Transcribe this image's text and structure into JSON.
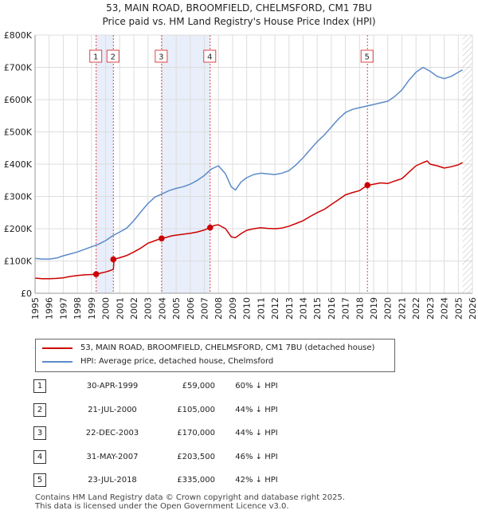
{
  "chart_data": {
    "type": "line",
    "title": "53, MAIN ROAD, BROOMFIELD, CHELMSFORD, CM1 7BU",
    "subtitle": "Price paid vs. HM Land Registry's House Price Index (HPI)",
    "xlim": [
      1995,
      2026
    ],
    "ylim": [
      0,
      800000
    ],
    "y_ticks": [
      0,
      100000,
      200000,
      300000,
      400000,
      500000,
      600000,
      700000,
      800000
    ],
    "y_tick_labels": [
      "£0",
      "£100K",
      "£200K",
      "£300K",
      "£400K",
      "£500K",
      "£600K",
      "£700K",
      "£800K"
    ],
    "x_ticks": [
      1995,
      1996,
      1997,
      1998,
      1999,
      2000,
      2001,
      2002,
      2003,
      2004,
      2005,
      2006,
      2007,
      2008,
      2009,
      2010,
      2011,
      2012,
      2013,
      2014,
      2015,
      2016,
      2017,
      2018,
      2019,
      2020,
      2021,
      2022,
      2023,
      2024,
      2025,
      2026
    ],
    "x_tick_labels": [
      "1995",
      "1996",
      "1997",
      "1998",
      "1999",
      "2000",
      "2001",
      "2002",
      "2003",
      "2004",
      "2005",
      "2006",
      "2007",
      "2008",
      "2009",
      "2010",
      "2011",
      "2012",
      "2013",
      "2014",
      "2015",
      "2016",
      "2017",
      "2018",
      "2019",
      "2020",
      "2021",
      "2022",
      "2023",
      "2024",
      "2025",
      "2026"
    ],
    "grid": true,
    "future_hatch_start": 2025.3,
    "series": [
      {
        "name": "53, MAIN ROAD, BROOMFIELD, CHELMSFORD, CM1 7BU (detached house)",
        "color": "#cc0000",
        "x": [
          1995.0,
          1995.5,
          1996.0,
          1996.5,
          1997.0,
          1997.5,
          1998.0,
          1998.5,
          1999.0,
          1999.33,
          1999.6,
          2000.0,
          2000.3,
          2000.55,
          2000.6,
          2001.0,
          2001.5,
          2002.0,
          2002.5,
          2003.0,
          2003.5,
          2003.97,
          2004.3,
          2004.7,
          2005.0,
          2005.5,
          2006.0,
          2006.5,
          2007.0,
          2007.41,
          2007.7,
          2008.0,
          2008.5,
          2008.9,
          2009.2,
          2009.6,
          2010.0,
          2010.5,
          2011.0,
          2011.5,
          2012.0,
          2012.5,
          2013.0,
          2013.5,
          2014.0,
          2014.5,
          2015.0,
          2015.5,
          2016.0,
          2016.5,
          2017.0,
          2017.5,
          2018.0,
          2018.56,
          2018.8,
          2019.0,
          2019.5,
          2020.0,
          2020.5,
          2021.0,
          2021.5,
          2022.0,
          2022.5,
          2022.8,
          2023.0,
          2023.5,
          2024.0,
          2024.5,
          2025.0,
          2025.3
        ],
        "y": [
          47000,
          45000,
          45000,
          46000,
          48000,
          52000,
          55000,
          57000,
          58000,
          59000,
          62000,
          66000,
          70000,
          74000,
          105000,
          110000,
          117000,
          128000,
          140000,
          155000,
          163000,
          170000,
          173000,
          178000,
          180000,
          183000,
          186000,
          190000,
          196000,
          203500,
          210000,
          212000,
          200000,
          175000,
          172000,
          185000,
          195000,
          200000,
          203000,
          201000,
          200000,
          202000,
          208000,
          216000,
          225000,
          238000,
          250000,
          260000,
          275000,
          290000,
          305000,
          312000,
          318000,
          335000,
          336000,
          338000,
          342000,
          340000,
          348000,
          355000,
          375000,
          395000,
          405000,
          410000,
          400000,
          395000,
          388000,
          392000,
          398000,
          405000
        ]
      },
      {
        "name": "HPI: Average price, detached house, Chelmsford",
        "color": "#5b8bc9",
        "x": [
          1995.0,
          1995.5,
          1996.0,
          1996.5,
          1997.0,
          1997.5,
          1998.0,
          1998.5,
          1999.0,
          1999.5,
          2000.0,
          2000.5,
          2001.0,
          2001.5,
          2002.0,
          2002.5,
          2003.0,
          2003.5,
          2004.0,
          2004.5,
          2005.0,
          2005.5,
          2006.0,
          2006.5,
          2007.0,
          2007.5,
          2008.0,
          2008.5,
          2008.9,
          2009.2,
          2009.6,
          2010.0,
          2010.5,
          2011.0,
          2011.5,
          2012.0,
          2012.5,
          2013.0,
          2013.5,
          2014.0,
          2014.5,
          2015.0,
          2015.5,
          2016.0,
          2016.5,
          2017.0,
          2017.5,
          2018.0,
          2018.5,
          2019.0,
          2019.5,
          2020.0,
          2020.5,
          2021.0,
          2021.5,
          2022.0,
          2022.5,
          2023.0,
          2023.5,
          2024.0,
          2024.5,
          2025.0,
          2025.3
        ],
        "y": [
          108000,
          106000,
          106000,
          109000,
          116000,
          122000,
          128000,
          136000,
          144000,
          152000,
          163000,
          178000,
          190000,
          202000,
          225000,
          252000,
          278000,
          298000,
          308000,
          318000,
          325000,
          330000,
          338000,
          350000,
          365000,
          385000,
          395000,
          370000,
          330000,
          320000,
          345000,
          358000,
          368000,
          372000,
          370000,
          368000,
          372000,
          380000,
          398000,
          420000,
          445000,
          470000,
          490000,
          515000,
          540000,
          560000,
          570000,
          575000,
          580000,
          585000,
          590000,
          595000,
          610000,
          630000,
          660000,
          685000,
          700000,
          688000,
          672000,
          665000,
          672000,
          685000,
          692000
        ]
      }
    ],
    "sale_markers": [
      {
        "label": "1",
        "x": 1999.33,
        "y": 59000
      },
      {
        "label": "2",
        "x": 2000.55,
        "y": 105000
      },
      {
        "label": "3",
        "x": 2003.97,
        "y": 170000
      },
      {
        "label": "4",
        "x": 2007.41,
        "y": 203500
      },
      {
        "label": "5",
        "x": 2018.56,
        "y": 335000
      }
    ],
    "shaded_periods": [
      [
        1999.33,
        2000.55
      ],
      [
        2003.97,
        2007.41
      ]
    ]
  },
  "legend": {
    "property_label": "53, MAIN ROAD, BROOMFIELD, CHELMSFORD, CM1 7BU (detached house)",
    "hpi_label": "HPI: Average price, detached house, Chelmsford"
  },
  "sales": [
    {
      "num": "1",
      "date": "30-APR-1999",
      "price": "£59,000",
      "hpi": "60% ↓ HPI"
    },
    {
      "num": "2",
      "date": "21-JUL-2000",
      "price": "£105,000",
      "hpi": "44% ↓ HPI"
    },
    {
      "num": "3",
      "date": "22-DEC-2003",
      "price": "£170,000",
      "hpi": "44% ↓ HPI"
    },
    {
      "num": "4",
      "date": "31-MAY-2007",
      "price": "£203,500",
      "hpi": "46% ↓ HPI"
    },
    {
      "num": "5",
      "date": "23-JUL-2018",
      "price": "£335,000",
      "hpi": "42% ↓ HPI"
    }
  ],
  "footer": {
    "line1": "Contains HM Land Registry data © Crown copyright and database right 2025.",
    "line2": "This data is licensed under the Open Government Licence v3.0."
  }
}
